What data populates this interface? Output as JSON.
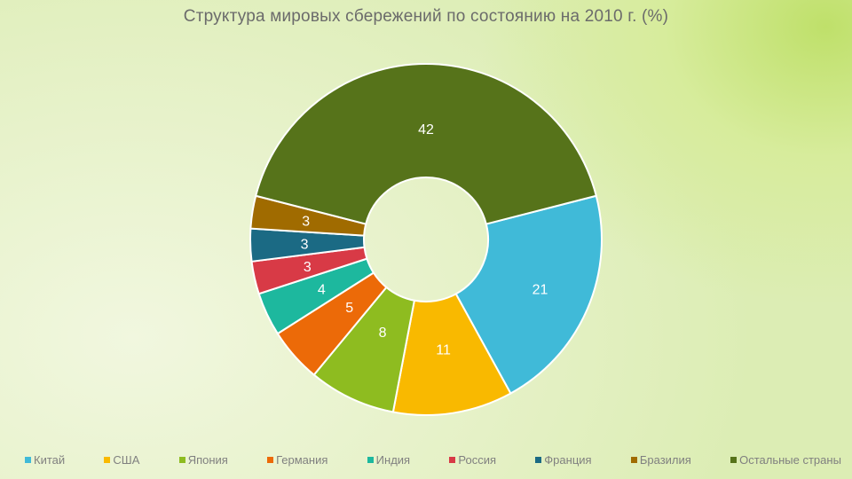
{
  "chart_data": {
    "type": "pie",
    "title": "Структура мировых сбережений по состоянию на 2010 г. (%)",
    "legend_position": "bottom",
    "categories": [
      "Китай",
      "США",
      "Япония",
      "Германия",
      "Индия",
      "Россия",
      "Франция",
      "Бразилия",
      "Остальные страны"
    ],
    "values": [
      21,
      11,
      8,
      5,
      4,
      3,
      3,
      3,
      42
    ],
    "colors": [
      "#40bad8",
      "#f9b900",
      "#8ebc20",
      "#ec6a08",
      "#1db89e",
      "#d83a46",
      "#1b6a84",
      "#a06b00",
      "#56731a"
    ]
  }
}
